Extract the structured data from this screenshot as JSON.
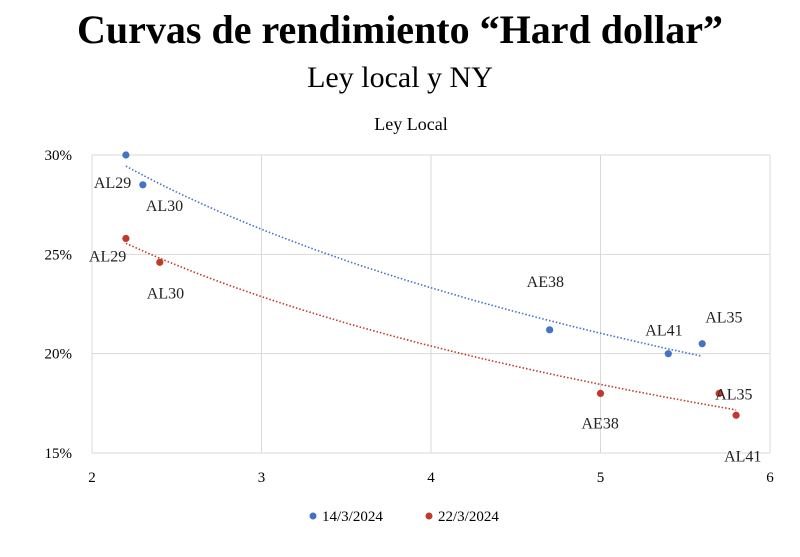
{
  "header": {
    "title": "Curvas de rendimiento “Hard dollar”",
    "subtitle": "Ley local y NY"
  },
  "chart_data": {
    "type": "scatter",
    "title": "Ley Local",
    "xlabel": "",
    "ylabel": "",
    "xlim": [
      2,
      6
    ],
    "ylim": [
      15,
      30
    ],
    "x_ticks": [
      "2",
      "3",
      "4",
      "5",
      "6"
    ],
    "y_ticks": [
      "15%",
      "20%",
      "25%",
      "30%"
    ],
    "grid": true,
    "legend_position": "bottom",
    "series": [
      {
        "name": "14/3/2024",
        "color": "#4472C4",
        "points": [
          {
            "label": "AL29",
            "x": 2.2,
            "y": 30.0
          },
          {
            "label": "AL30",
            "x": 2.3,
            "y": 28.5
          },
          {
            "label": "AE38",
            "x": 4.7,
            "y": 21.2
          },
          {
            "label": "AL41",
            "x": 5.4,
            "y": 20.0
          },
          {
            "label": "AL35",
            "x": 5.6,
            "y": 20.5
          }
        ],
        "trendline": {
          "type": "logarithmic",
          "x_range": [
            2.2,
            5.6
          ]
        }
      },
      {
        "name": "22/3/2024",
        "color": "#C0392B",
        "points": [
          {
            "label": "AL29",
            "x": 2.2,
            "y": 25.8
          },
          {
            "label": "AL30",
            "x": 2.4,
            "y": 24.6
          },
          {
            "label": "AE38",
            "x": 5.0,
            "y": 18.0
          },
          {
            "label": "AL35",
            "x": 5.7,
            "y": 18.0
          },
          {
            "label": "AL41",
            "x": 5.8,
            "y": 16.9
          }
        ],
        "trendline": {
          "type": "logarithmic",
          "x_range": [
            2.2,
            5.8
          ]
        }
      }
    ]
  }
}
